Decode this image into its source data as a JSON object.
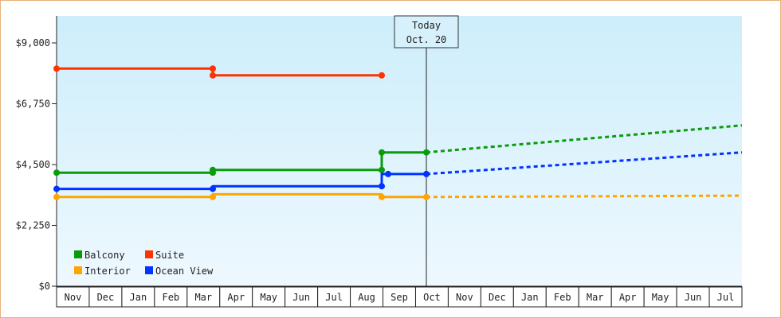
{
  "chart_data": {
    "type": "line",
    "y_axis": {
      "ylim": [
        0,
        10000
      ],
      "ticks": [
        0,
        2250,
        4500,
        6750,
        9000
      ],
      "tick_labels": [
        "$0",
        "$2,250",
        "$4,500",
        "$6,750",
        "$9,000"
      ]
    },
    "x_axis": {
      "months": [
        "Nov",
        "Dec",
        "Jan",
        "Feb",
        "Mar",
        "Apr",
        "May",
        "Jun",
        "Jul",
        "Aug",
        "Sep",
        "Oct",
        "Nov",
        "Dec",
        "Jan",
        "Feb",
        "Mar",
        "Apr",
        "May",
        "Jun",
        "Jul"
      ],
      "range_months": [
        0,
        21.5
      ]
    },
    "today": {
      "line1": "Today",
      "line2": "Oct. 20",
      "x": 11.6
    },
    "series": [
      {
        "name": "Balcony",
        "color": "#0a9b0a",
        "points": [
          [
            0,
            4200
          ],
          [
            4.9,
            4200
          ],
          [
            4.9,
            4300
          ],
          [
            10.2,
            4300
          ],
          [
            10.2,
            4950
          ],
          [
            11.6,
            4950
          ]
        ],
        "markers": [
          [
            0,
            4200
          ],
          [
            4.9,
            4200
          ],
          [
            4.9,
            4300
          ],
          [
            10.2,
            4300
          ],
          [
            10.2,
            4950
          ],
          [
            11.6,
            4950
          ]
        ],
        "forecast": [
          [
            11.6,
            4950
          ],
          [
            21.5,
            5950
          ]
        ]
      },
      {
        "name": "Suite",
        "color": "#ff3300",
        "points": [
          [
            0,
            8050
          ],
          [
            4.9,
            8050
          ],
          [
            4.9,
            7800
          ],
          [
            10.2,
            7800
          ]
        ],
        "markers": [
          [
            0,
            8050
          ],
          [
            4.9,
            8050
          ],
          [
            4.9,
            7800
          ],
          [
            10.2,
            7800
          ]
        ],
        "forecast": null
      },
      {
        "name": "Interior",
        "color": "#ffa500",
        "points": [
          [
            0,
            3300
          ],
          [
            4.9,
            3300
          ],
          [
            4.9,
            3400
          ],
          [
            10.2,
            3400
          ],
          [
            10.2,
            3300
          ],
          [
            11.6,
            3300
          ]
        ],
        "markers": [
          [
            0,
            3300
          ],
          [
            4.9,
            3300
          ],
          [
            10.2,
            3300
          ],
          [
            11.6,
            3300
          ]
        ],
        "forecast": [
          [
            11.6,
            3300
          ],
          [
            21.5,
            3350
          ]
        ]
      },
      {
        "name": "Ocean View",
        "color": "#0033ff",
        "points": [
          [
            0,
            3600
          ],
          [
            4.9,
            3600
          ],
          [
            4.9,
            3700
          ],
          [
            10.2,
            3700
          ],
          [
            10.2,
            4150
          ],
          [
            11.6,
            4150
          ]
        ],
        "markers": [
          [
            0,
            3600
          ],
          [
            4.9,
            3600
          ],
          [
            10.2,
            3700
          ],
          [
            10.4,
            4150
          ],
          [
            11.6,
            4150
          ]
        ],
        "forecast": [
          [
            11.6,
            4150
          ],
          [
            21.5,
            4950
          ]
        ]
      }
    ],
    "legend": {
      "placement": "bottom-left",
      "entries": [
        {
          "name": "Balcony",
          "color": "#0a9b0a"
        },
        {
          "name": "Suite",
          "color": "#ff3300"
        },
        {
          "name": "Interior",
          "color": "#ffa500"
        },
        {
          "name": "Ocean View",
          "color": "#0033ff"
        }
      ]
    },
    "colors": {
      "bg_top": "#cdeefb",
      "bg_bottom": "#eef8fe",
      "frame": "#e8b27a"
    }
  }
}
